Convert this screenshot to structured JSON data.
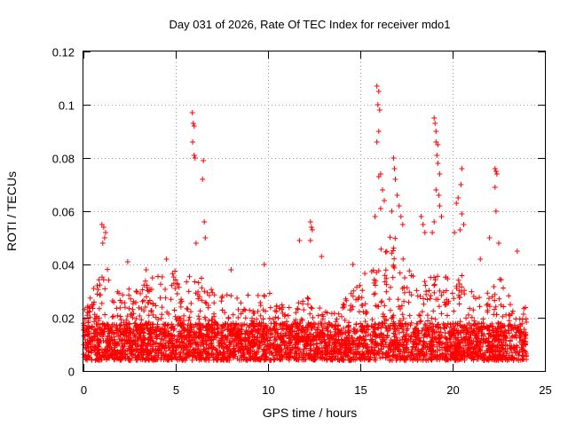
{
  "chart_data": {
    "type": "scatter",
    "title": "Day 031 of 2026, Rate Of TEC Index for receiver mdo1",
    "xlabel": "GPS time / hours",
    "ylabel": "ROTI / TECUs",
    "xlim": [
      0,
      25
    ],
    "ylim": [
      0,
      0.12
    ],
    "xticks": [
      0,
      5,
      10,
      15,
      20,
      25
    ],
    "xtick_labels": [
      "0",
      "5",
      "10",
      "15",
      "20",
      "25"
    ],
    "yticks": [
      0,
      0.02,
      0.04,
      0.06,
      0.08,
      0.1,
      0.12
    ],
    "ytick_labels": [
      "0",
      "0.02",
      "0.04",
      "0.06",
      "0.08",
      "0.1",
      "0.12"
    ],
    "grid": true,
    "marker": "+",
    "color": "#ff0000",
    "series": [
      {
        "name": "ROTI",
        "x_range": [
          0,
          24
        ],
        "baseline_range": [
          0.004,
          0.018
        ],
        "envelope": [
          {
            "x": 0.0,
            "y": 0.025
          },
          {
            "x": 0.5,
            "y": 0.03
          },
          {
            "x": 1.0,
            "y": 0.04
          },
          {
            "x": 1.5,
            "y": 0.038
          },
          {
            "x": 2.0,
            "y": 0.03
          },
          {
            "x": 2.5,
            "y": 0.032
          },
          {
            "x": 3.0,
            "y": 0.03
          },
          {
            "x": 3.5,
            "y": 0.036
          },
          {
            "x": 4.0,
            "y": 0.036
          },
          {
            "x": 4.5,
            "y": 0.038
          },
          {
            "x": 5.0,
            "y": 0.04
          },
          {
            "x": 5.5,
            "y": 0.034
          },
          {
            "x": 6.0,
            "y": 0.04
          },
          {
            "x": 6.5,
            "y": 0.036
          },
          {
            "x": 7.0,
            "y": 0.03
          },
          {
            "x": 7.5,
            "y": 0.028
          },
          {
            "x": 8.0,
            "y": 0.03
          },
          {
            "x": 8.5,
            "y": 0.028
          },
          {
            "x": 9.0,
            "y": 0.03
          },
          {
            "x": 9.5,
            "y": 0.03
          },
          {
            "x": 10.0,
            "y": 0.03
          },
          {
            "x": 10.5,
            "y": 0.026
          },
          {
            "x": 11.0,
            "y": 0.024
          },
          {
            "x": 11.5,
            "y": 0.026
          },
          {
            "x": 12.0,
            "y": 0.028
          },
          {
            "x": 12.5,
            "y": 0.026
          },
          {
            "x": 13.0,
            "y": 0.024
          },
          {
            "x": 13.5,
            "y": 0.022
          },
          {
            "x": 14.0,
            "y": 0.026
          },
          {
            "x": 14.5,
            "y": 0.03
          },
          {
            "x": 15.0,
            "y": 0.034
          },
          {
            "x": 15.5,
            "y": 0.04
          },
          {
            "x": 16.0,
            "y": 0.05
          },
          {
            "x": 16.5,
            "y": 0.052
          },
          {
            "x": 17.0,
            "y": 0.05
          },
          {
            "x": 17.5,
            "y": 0.04
          },
          {
            "x": 18.0,
            "y": 0.034
          },
          {
            "x": 18.5,
            "y": 0.034
          },
          {
            "x": 19.0,
            "y": 0.04
          },
          {
            "x": 19.5,
            "y": 0.036
          },
          {
            "x": 20.0,
            "y": 0.034
          },
          {
            "x": 20.5,
            "y": 0.036
          },
          {
            "x": 21.0,
            "y": 0.03
          },
          {
            "x": 21.5,
            "y": 0.028
          },
          {
            "x": 22.0,
            "y": 0.03
          },
          {
            "x": 22.5,
            "y": 0.036
          },
          {
            "x": 23.0,
            "y": 0.03
          },
          {
            "x": 23.5,
            "y": 0.026
          },
          {
            "x": 24.0,
            "y": 0.024
          }
        ],
        "outliers": [
          {
            "x": 1.0,
            "y": 0.055
          },
          {
            "x": 1.1,
            "y": 0.054
          },
          {
            "x": 1.2,
            "y": 0.052
          },
          {
            "x": 1.15,
            "y": 0.05
          },
          {
            "x": 1.05,
            "y": 0.048
          },
          {
            "x": 5.9,
            "y": 0.097
          },
          {
            "x": 5.95,
            "y": 0.093
          },
          {
            "x": 6.0,
            "y": 0.092
          },
          {
            "x": 5.92,
            "y": 0.086
          },
          {
            "x": 6.0,
            "y": 0.081
          },
          {
            "x": 6.05,
            "y": 0.08
          },
          {
            "x": 6.5,
            "y": 0.079
          },
          {
            "x": 6.45,
            "y": 0.072
          },
          {
            "x": 6.55,
            "y": 0.056
          },
          {
            "x": 6.1,
            "y": 0.048
          },
          {
            "x": 6.6,
            "y": 0.05
          },
          {
            "x": 11.7,
            "y": 0.049
          },
          {
            "x": 12.3,
            "y": 0.056
          },
          {
            "x": 12.35,
            "y": 0.054
          },
          {
            "x": 12.4,
            "y": 0.053
          },
          {
            "x": 12.3,
            "y": 0.049
          },
          {
            "x": 12.9,
            "y": 0.043
          },
          {
            "x": 15.9,
            "y": 0.107
          },
          {
            "x": 16.0,
            "y": 0.105
          },
          {
            "x": 15.95,
            "y": 0.1
          },
          {
            "x": 16.05,
            "y": 0.098
          },
          {
            "x": 16.0,
            "y": 0.09
          },
          {
            "x": 15.9,
            "y": 0.086
          },
          {
            "x": 16.1,
            "y": 0.074
          },
          {
            "x": 16.0,
            "y": 0.073
          },
          {
            "x": 16.2,
            "y": 0.068
          },
          {
            "x": 16.3,
            "y": 0.064
          },
          {
            "x": 16.1,
            "y": 0.061
          },
          {
            "x": 15.8,
            "y": 0.058
          },
          {
            "x": 16.8,
            "y": 0.08
          },
          {
            "x": 16.85,
            "y": 0.076
          },
          {
            "x": 16.9,
            "y": 0.072
          },
          {
            "x": 17.0,
            "y": 0.066
          },
          {
            "x": 17.1,
            "y": 0.062
          },
          {
            "x": 16.7,
            "y": 0.06
          },
          {
            "x": 17.2,
            "y": 0.058
          },
          {
            "x": 17.3,
            "y": 0.055
          },
          {
            "x": 18.3,
            "y": 0.058
          },
          {
            "x": 18.4,
            "y": 0.055
          },
          {
            "x": 18.5,
            "y": 0.052
          },
          {
            "x": 19.0,
            "y": 0.095
          },
          {
            "x": 19.05,
            "y": 0.093
          },
          {
            "x": 19.1,
            "y": 0.09
          },
          {
            "x": 19.1,
            "y": 0.086
          },
          {
            "x": 19.2,
            "y": 0.085
          },
          {
            "x": 19.15,
            "y": 0.081
          },
          {
            "x": 19.2,
            "y": 0.078
          },
          {
            "x": 19.3,
            "y": 0.074
          },
          {
            "x": 19.1,
            "y": 0.068
          },
          {
            "x": 19.25,
            "y": 0.066
          },
          {
            "x": 19.3,
            "y": 0.062
          },
          {
            "x": 19.4,
            "y": 0.058
          },
          {
            "x": 19.0,
            "y": 0.056
          },
          {
            "x": 18.9,
            "y": 0.052
          },
          {
            "x": 20.5,
            "y": 0.076
          },
          {
            "x": 20.45,
            "y": 0.07
          },
          {
            "x": 20.3,
            "y": 0.065
          },
          {
            "x": 20.2,
            "y": 0.063
          },
          {
            "x": 20.5,
            "y": 0.059
          },
          {
            "x": 20.6,
            "y": 0.055
          },
          {
            "x": 20.4,
            "y": 0.053
          },
          {
            "x": 20.1,
            "y": 0.052
          },
          {
            "x": 22.3,
            "y": 0.076
          },
          {
            "x": 22.35,
            "y": 0.075
          },
          {
            "x": 22.4,
            "y": 0.074
          },
          {
            "x": 22.3,
            "y": 0.069
          },
          {
            "x": 22.35,
            "y": 0.06
          },
          {
            "x": 22.0,
            "y": 0.05
          },
          {
            "x": 22.5,
            "y": 0.048
          },
          {
            "x": 23.5,
            "y": 0.045
          },
          {
            "x": 21.5,
            "y": 0.042
          },
          {
            "x": 9.8,
            "y": 0.04
          },
          {
            "x": 8.0,
            "y": 0.038
          },
          {
            "x": 2.4,
            "y": 0.041
          },
          {
            "x": 4.5,
            "y": 0.042
          },
          {
            "x": 3.4,
            "y": 0.038
          },
          {
            "x": 14.6,
            "y": 0.04
          }
        ]
      }
    ]
  }
}
